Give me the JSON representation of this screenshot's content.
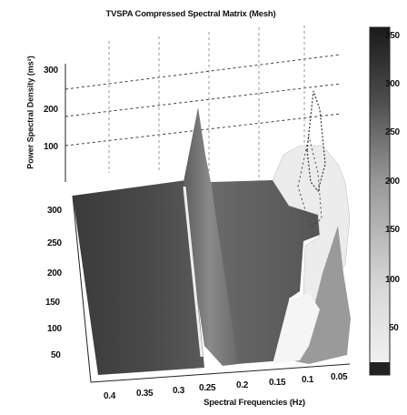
{
  "chart_data": {
    "type": "surface",
    "title": "TVSPA Compressed Spectral Matrix (Mesh)",
    "xlabel": "Spectral Frequencies (Hz)",
    "ylabel": "Power Spectral Density (ms²)",
    "x_ticks": [
      "0.4",
      "0.35",
      "0.3",
      "0.25",
      "0.2",
      "0.15",
      "0.1",
      "0.05"
    ],
    "z_ticks_back": [
      "300",
      "200",
      "100"
    ],
    "z_ticks_front": [
      "300",
      "250",
      "200",
      "150",
      "100",
      "50"
    ],
    "colorbar_ticks": [
      "350",
      "300",
      "250",
      "200",
      "150",
      "100",
      "50"
    ],
    "colorbar_range": [
      0,
      360
    ],
    "grid": true,
    "peaks": [
      {
        "frequency": 0.27,
        "psd": 330
      },
      {
        "frequency": 0.09,
        "psd": 260
      }
    ]
  }
}
